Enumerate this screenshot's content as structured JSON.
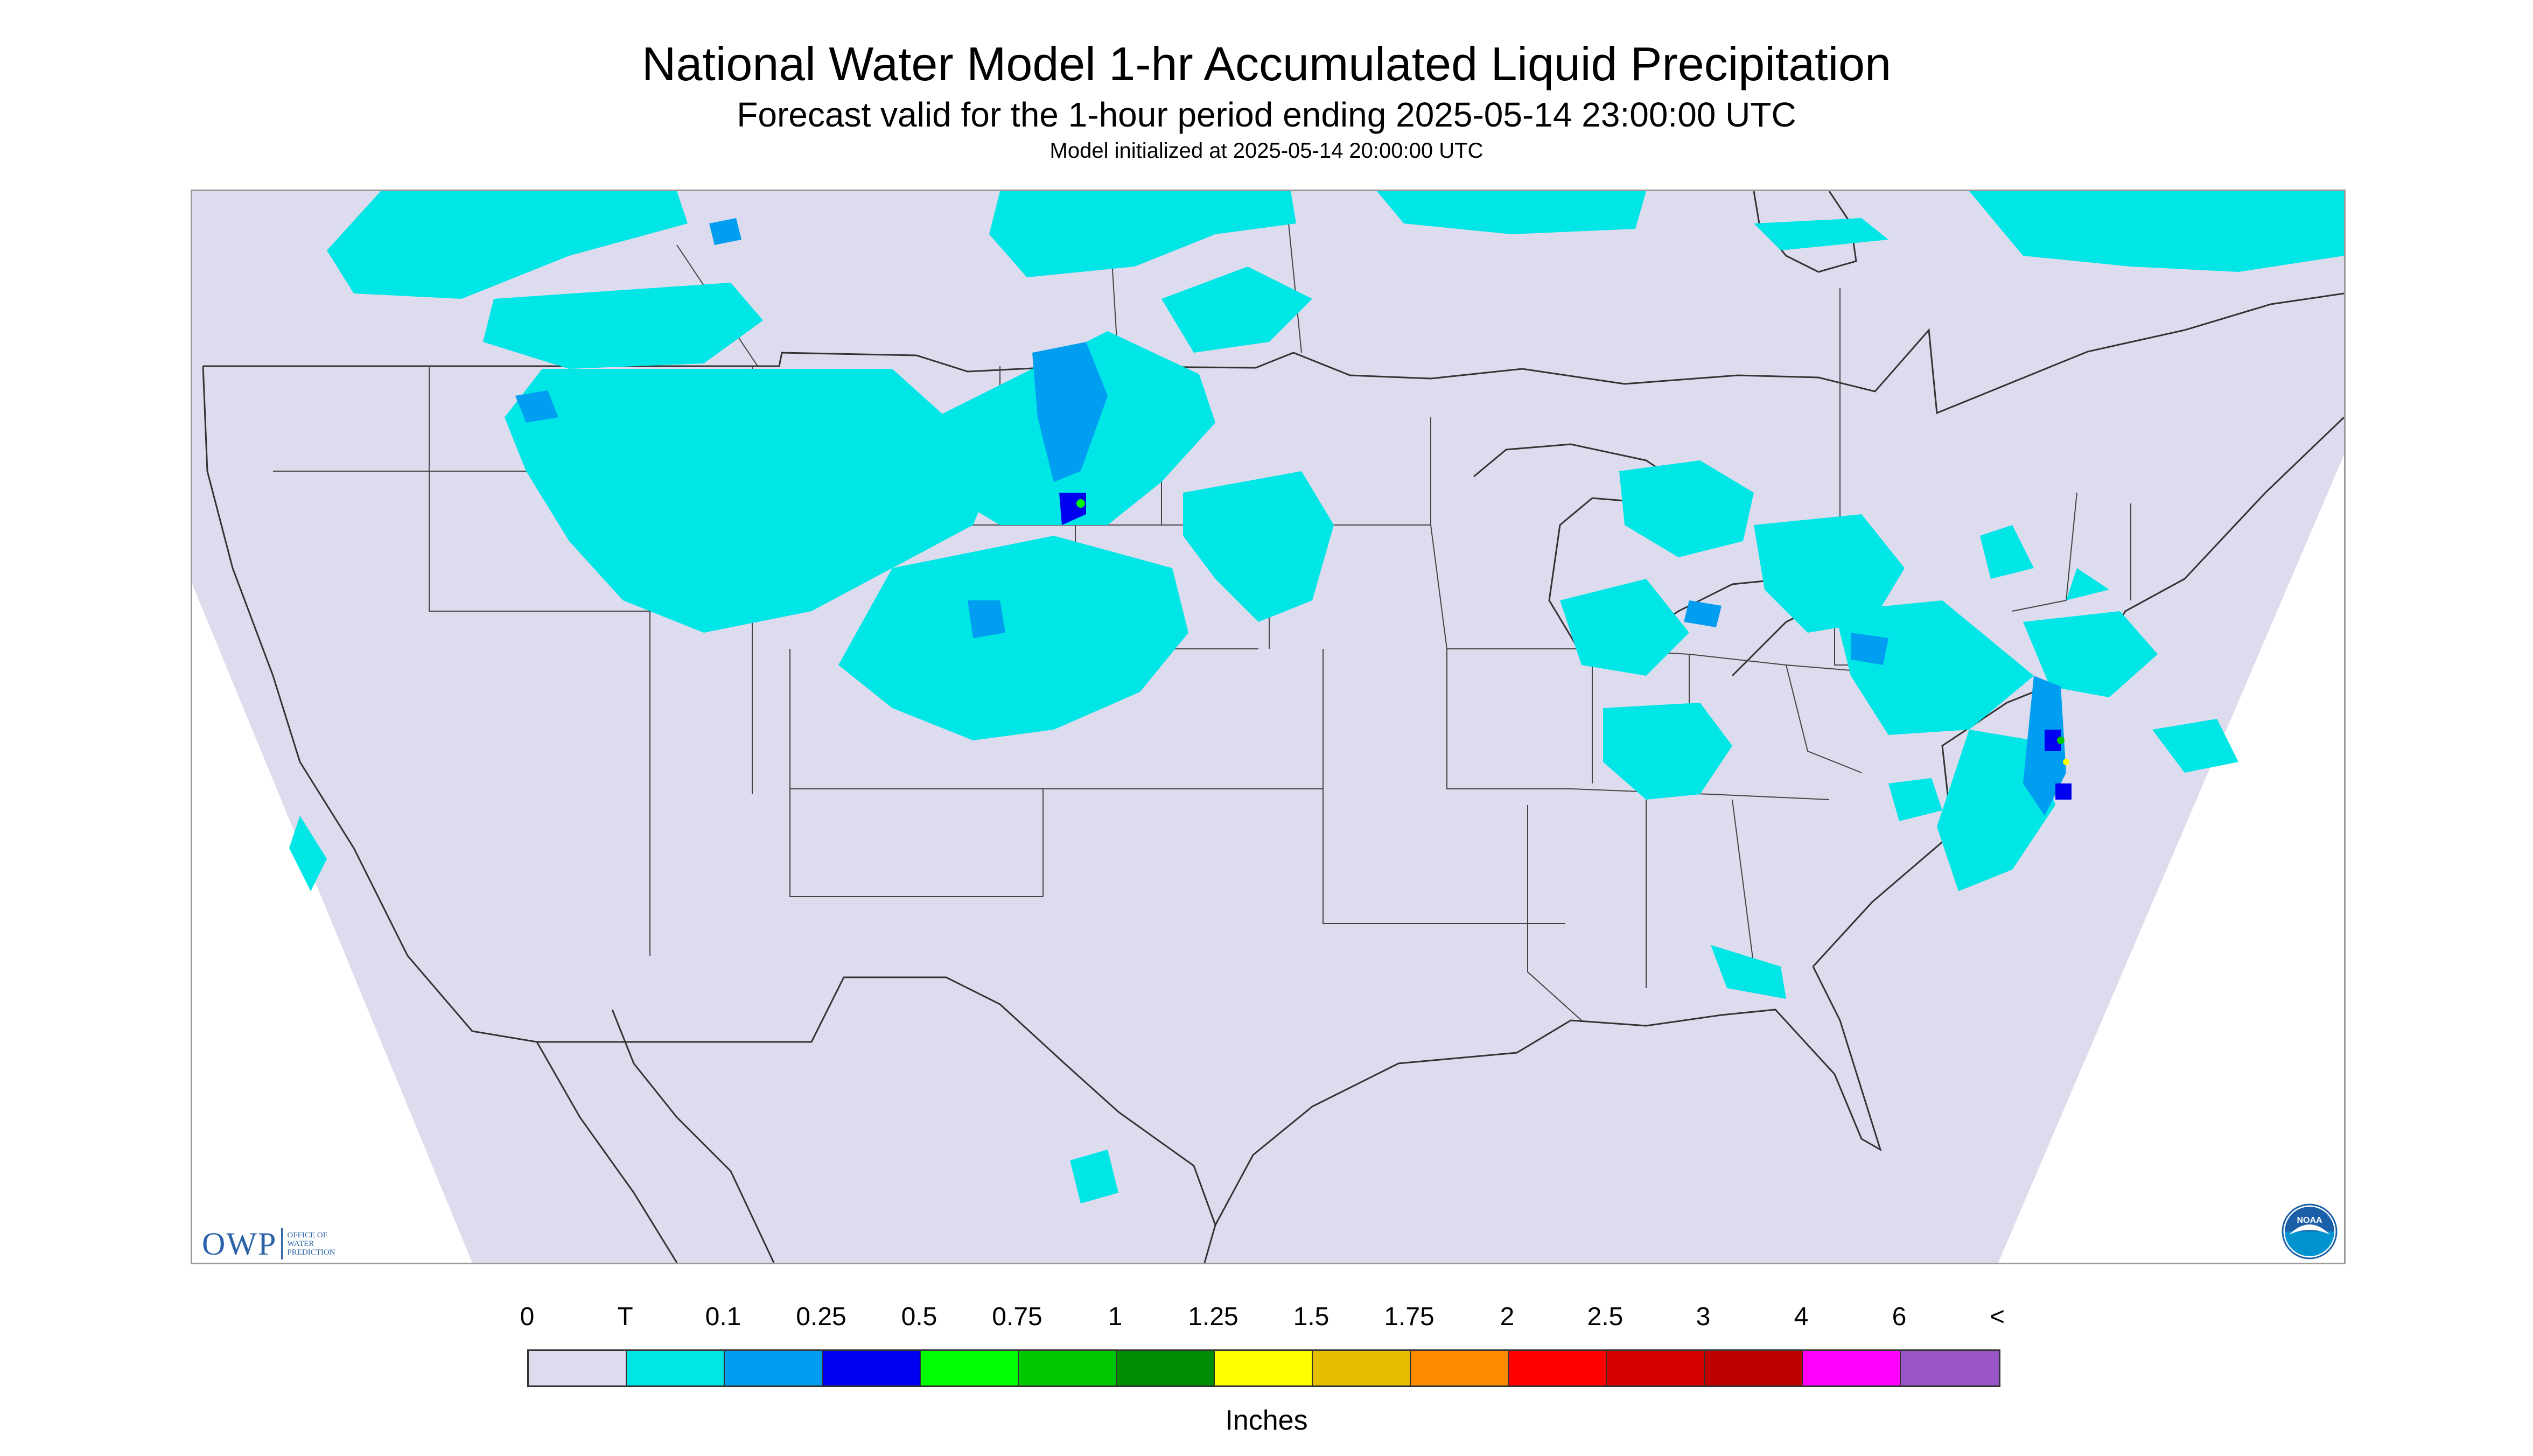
{
  "title": "National Water Model 1-hr Accumulated Liquid Precipitation",
  "subtitle": "Forecast valid for the 1-hour period ending 2025-05-14 23:00:00 UTC",
  "init_note": "Model initialized at 2025-05-14 20:00:00 UTC",
  "map": {
    "projection": "lambert-conformal-conus",
    "domain_fill": "#dcdcee",
    "outside_fill": "#ffffff",
    "boundary_color": "#333333",
    "coverage": "light precipitation (0.01–0.25 in) scattered over the northern Rockies/High Plains, western Nebraska–Colorado, Great Lakes, Ohio Valley, Mid-Atlantic and Northeast; heavier cells (0.25–1 in) over western Nebraska and eastern Virginia/North Carolina"
  },
  "logos": {
    "owp": {
      "letters": "OWP",
      "lines": [
        "OFFICE OF",
        "WATER",
        "PREDICTION"
      ]
    },
    "noaa": {
      "text": "NOAA",
      "icon": "noaa-seal-icon"
    }
  },
  "legend": {
    "units": "Inches",
    "tick_labels": [
      "0",
      "T",
      "0.1",
      "0.25",
      "0.5",
      "0.75",
      "1",
      "1.25",
      "1.5",
      "1.75",
      "2",
      "2.5",
      "3",
      "4",
      "6",
      "<"
    ],
    "colors": [
      "#dcdcee",
      "#00e5e5",
      "#009ef0",
      "#0000f0",
      "#00ff00",
      "#00c800",
      "#008c00",
      "#ffff00",
      "#e6be00",
      "#ff8c00",
      "#ff0000",
      "#d70000",
      "#bd0000",
      "#ff00ff",
      "#9955c8"
    ]
  }
}
